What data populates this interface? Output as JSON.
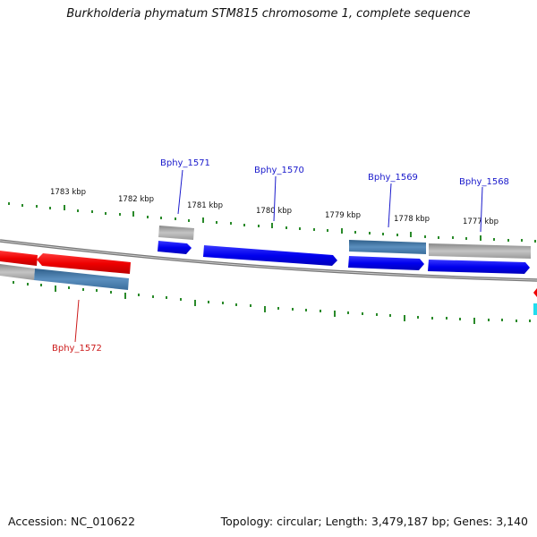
{
  "title": "Burkholderia phymatum STM815 chromosome 1, complete sequence",
  "footer": {
    "accession": "Accession: NC_010622",
    "topology": "Topology: circular; Length: 3,479,187 bp; Genes: 3,140"
  },
  "scale_labels": [
    "1783 kbp",
    "1782 kbp",
    "1781 kbp",
    "1780 kbp",
    "1779 kbp",
    "1778 kbp",
    "1777 kbp"
  ],
  "gene_labels": {
    "bphy_1571": "Bphy_1571",
    "bphy_1570": "Bphy_1570",
    "bphy_1569": "Bphy_1569",
    "bphy_1568": "Bphy_1568",
    "bphy_1572": "Bphy_1572"
  },
  "colors": {
    "backbone": "#777777",
    "forward_cds": "#0000ee",
    "reverse_cds": "#ee0000",
    "steel_feature": "#4a7fae",
    "gray_feature": "#aaaaaa",
    "tick": "#2a8a2a",
    "cyan_feature": "#22ddee"
  }
}
